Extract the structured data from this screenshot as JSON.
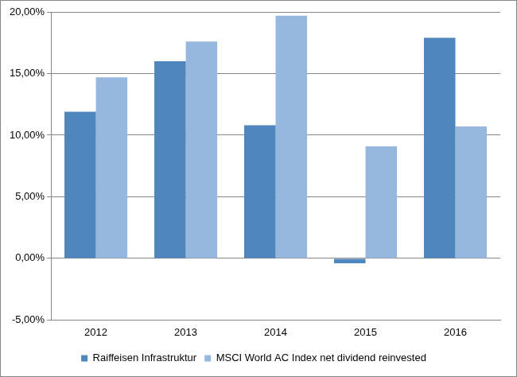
{
  "chart_data": {
    "type": "bar",
    "categories": [
      "2012",
      "2013",
      "2014",
      "2015",
      "2016"
    ],
    "series": [
      {
        "name": "Raiffeisen Infrastruktur",
        "color": "#4f86be",
        "values": [
          11.9,
          16.0,
          10.8,
          -0.4,
          17.9
        ]
      },
      {
        "name": "MSCI World AC Index net dividend reinvested",
        "color": "#96b7de",
        "values": [
          14.7,
          17.6,
          19.7,
          9.1,
          10.7
        ]
      }
    ],
    "ylim": [
      -5,
      20
    ],
    "yticks": [
      {
        "value": -5,
        "label": "-5,00%"
      },
      {
        "value": 0,
        "label": "0,00%"
      },
      {
        "value": 5,
        "label": "5,00%"
      },
      {
        "value": 10,
        "label": "10,00%"
      },
      {
        "value": 15,
        "label": "15,00%"
      },
      {
        "value": 20,
        "label": "20,00%"
      }
    ],
    "grid": true,
    "legend": "bottom"
  }
}
